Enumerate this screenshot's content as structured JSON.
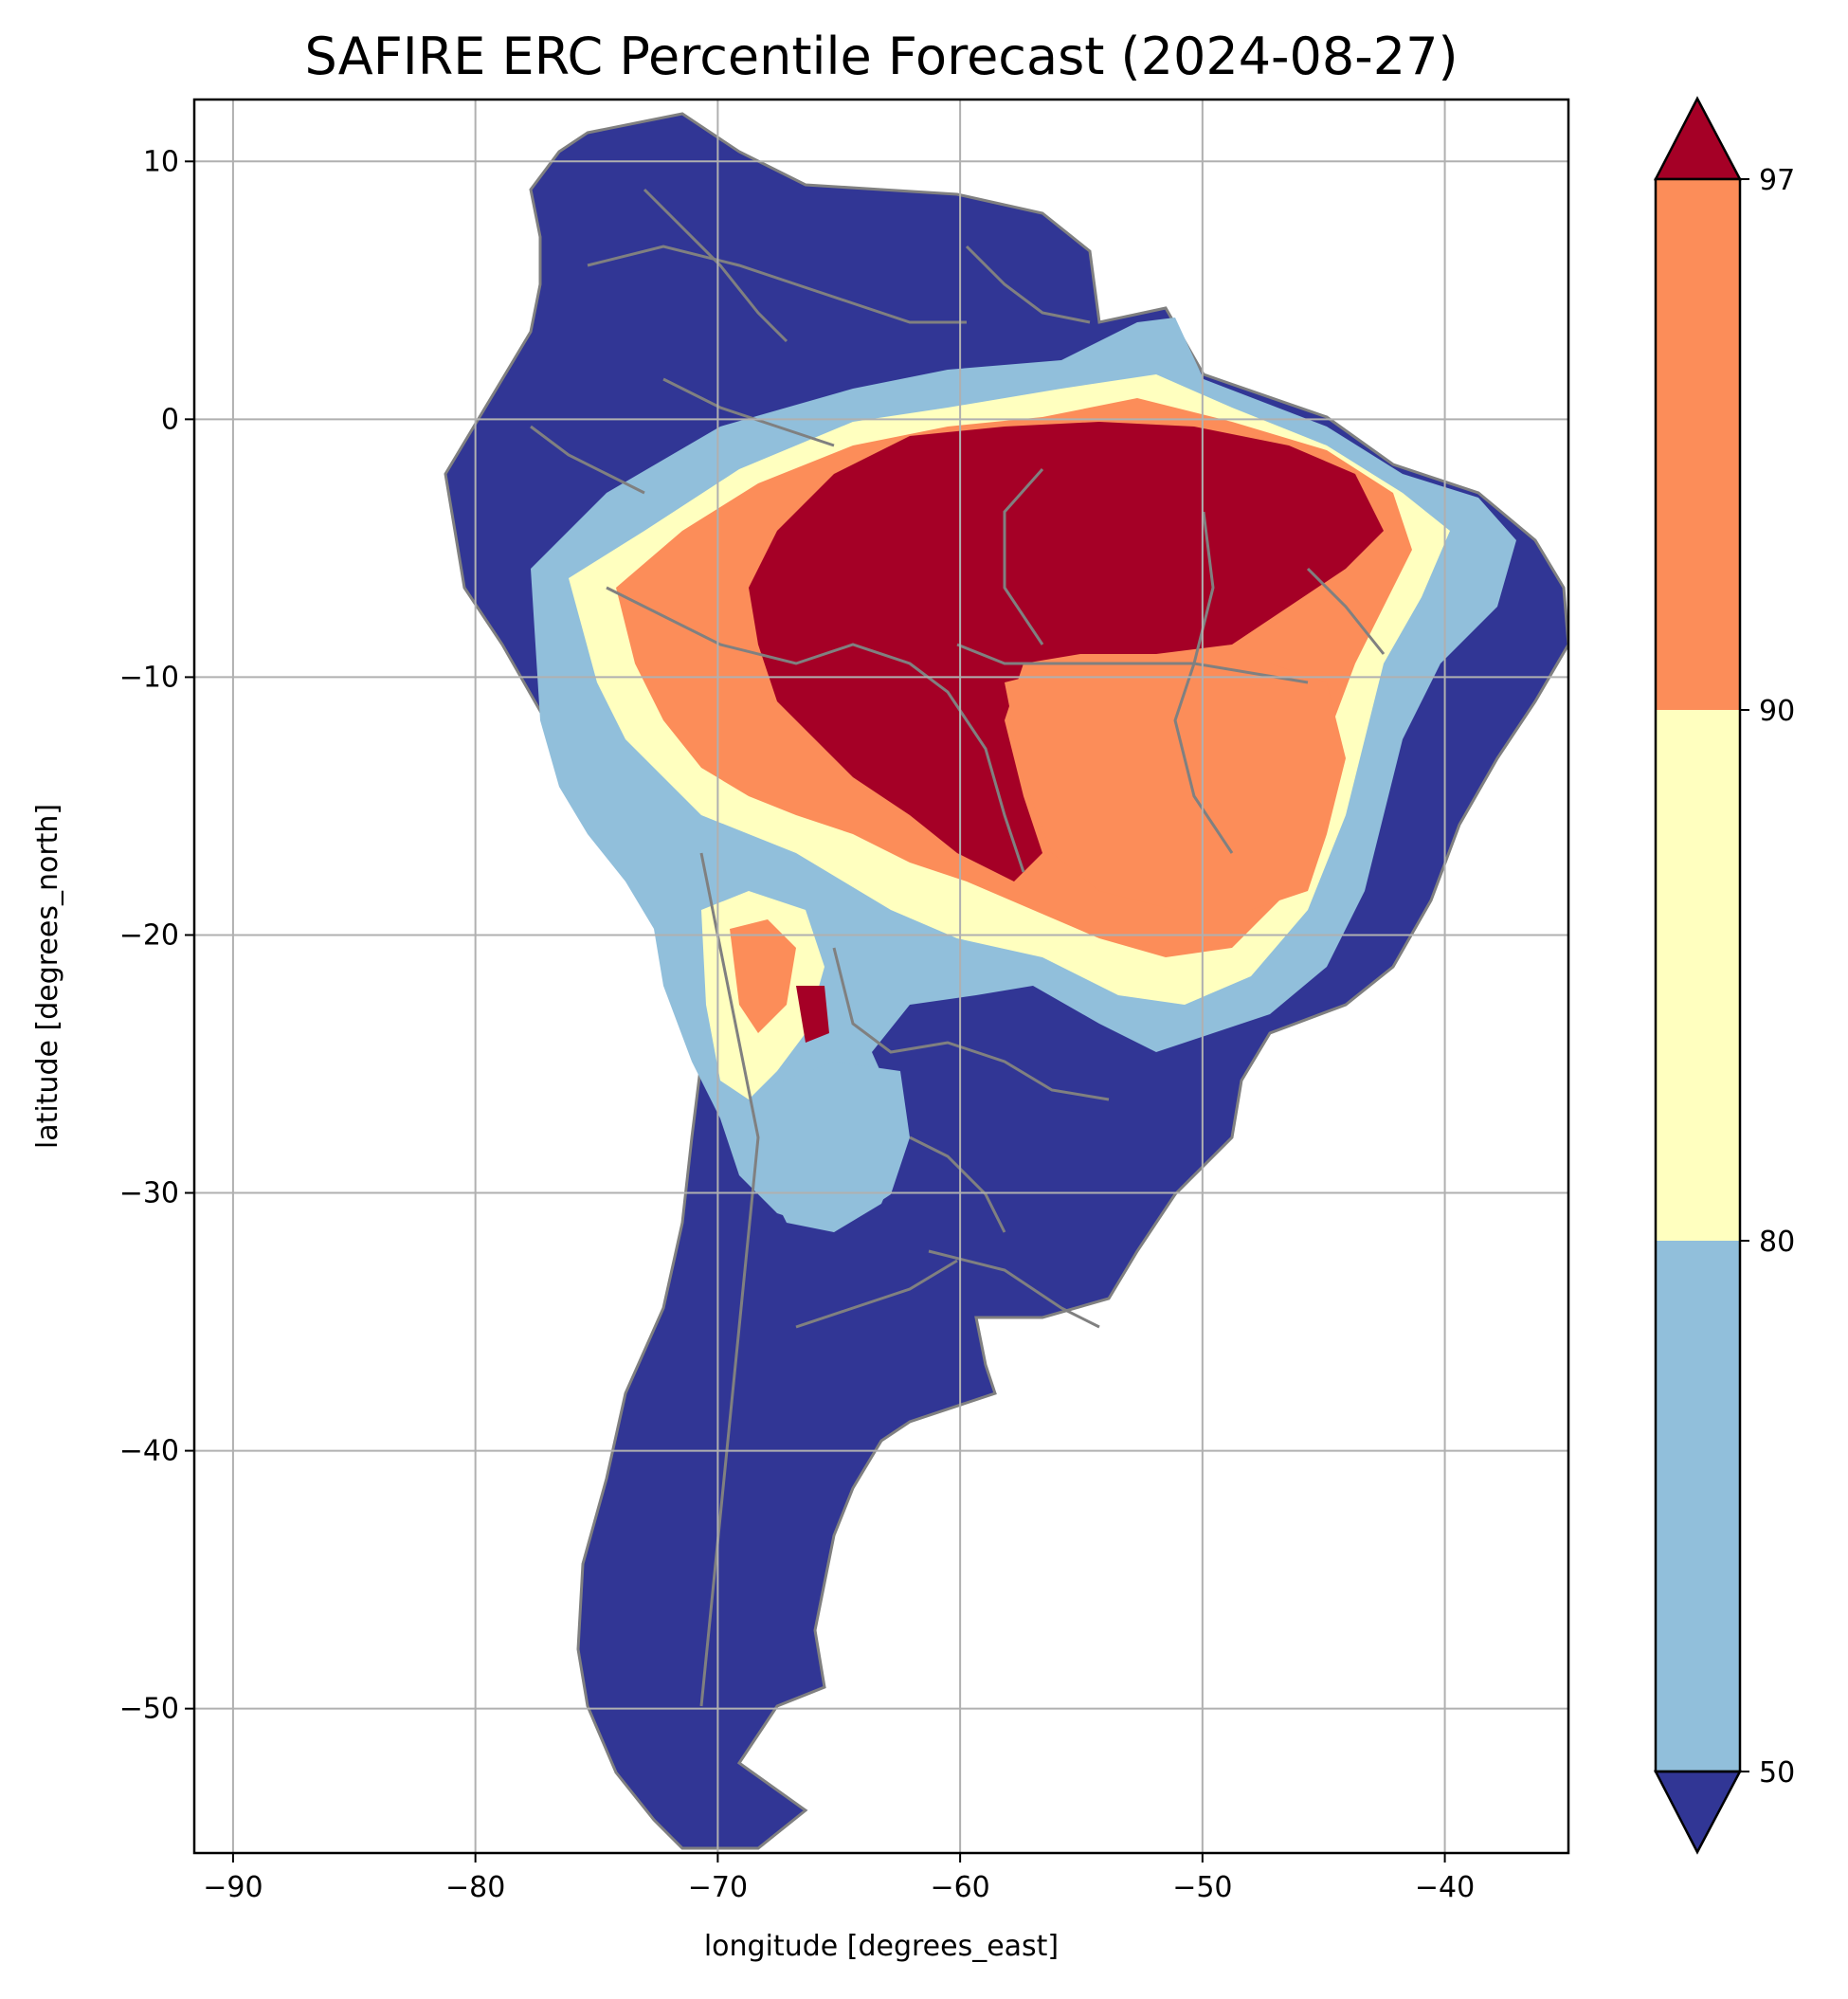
{
  "title": "SAFIRE ERC Percentile Forecast (2024-08-27)",
  "axes": {
    "xlabel": "longitude [degrees_east]",
    "ylabel": "latitude [degrees_north]",
    "xlim": [
      -91.6,
      -34.9
    ],
    "ylim": [
      -55.6,
      12.4
    ],
    "xticks": [
      -90,
      -80,
      -70,
      -60,
      -50,
      -40
    ],
    "yticks": [
      10,
      0,
      -10,
      -20,
      -30,
      -40,
      -50
    ],
    "grid": true
  },
  "colorbar": {
    "position": "right",
    "extend": "both",
    "boundaries": [
      50,
      80,
      90,
      97
    ],
    "tick_labels": [
      "97",
      "90",
      "80",
      "50"
    ],
    "colors": {
      "below_50": "#313695",
      "50_80": "#91bfdb",
      "80_90": "#ffffbf",
      "90_97": "#fc8d59",
      "above_97": "#a50026"
    }
  },
  "map": {
    "region": "South America",
    "border_color": "#808080",
    "ocean_color": "#ffffff"
  }
}
